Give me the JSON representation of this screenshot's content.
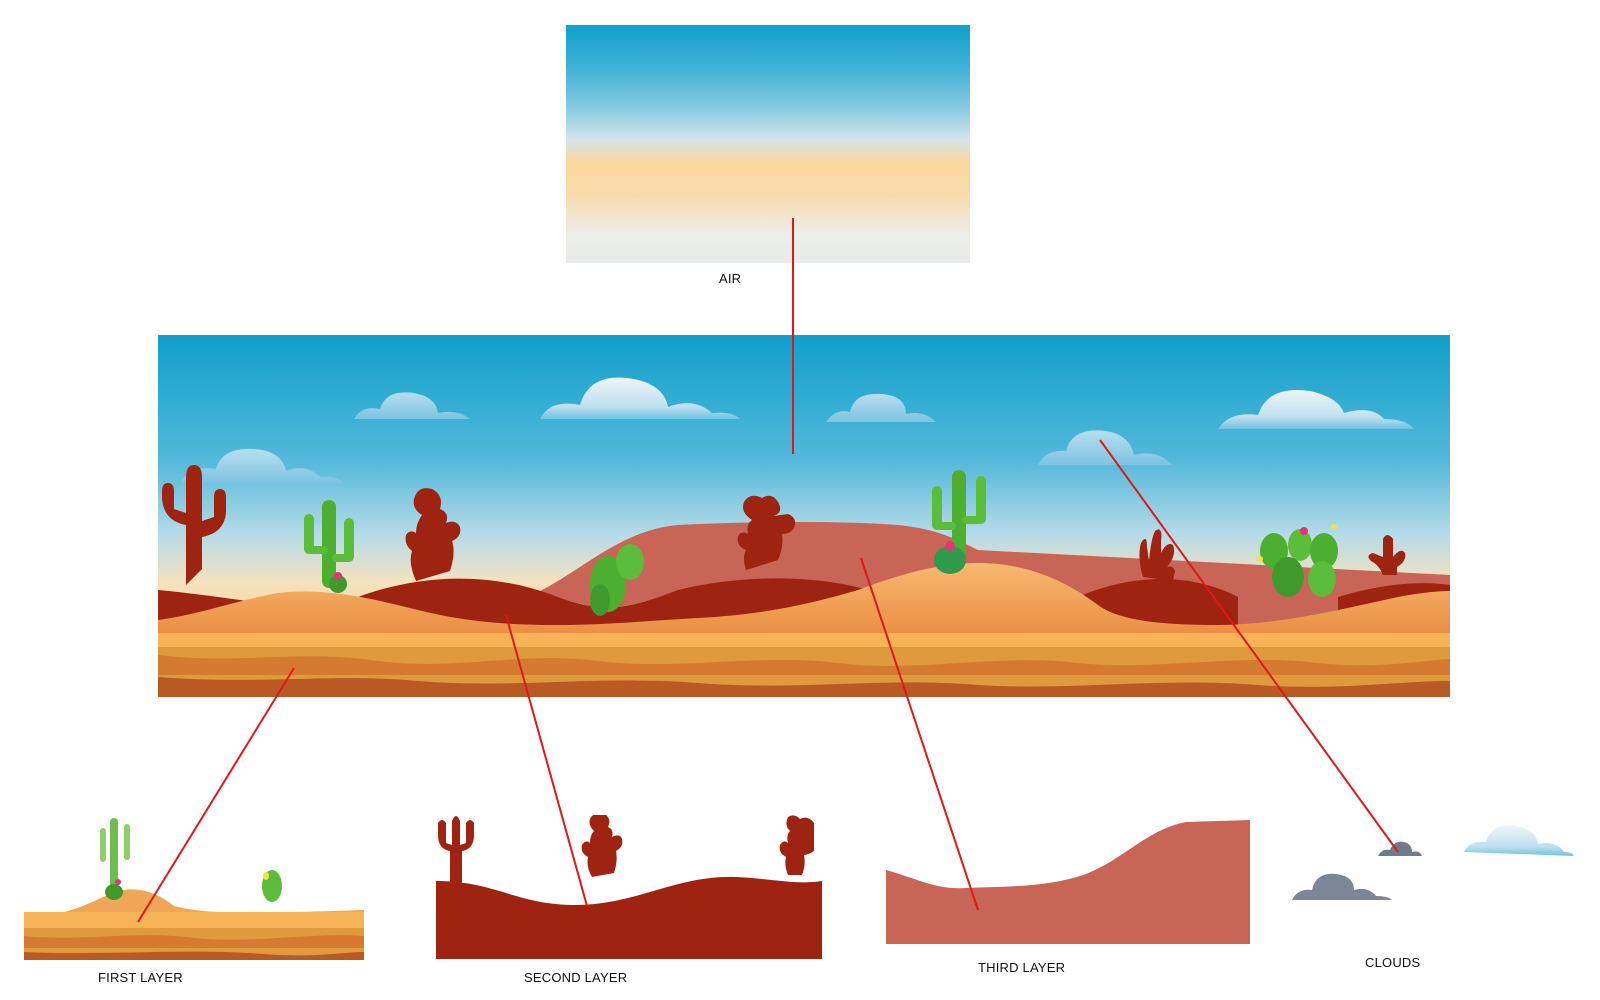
{
  "labels": {
    "air": "AIR",
    "first_layer": "FIRST LAYER",
    "second_layer": "SECOND LAYER",
    "third_layer": "THIRD LAYER",
    "clouds": "CLOUDS"
  },
  "colors": {
    "sky_top": "#0fa0cc",
    "sky_warm": "#fbd79a",
    "sand": "#f4a35a",
    "sand_dark": "#e58a3c",
    "second_layer": "#9e2310",
    "third_layer": "#c96557",
    "cactus_green": "#4caf2f",
    "connector": "#e01818"
  }
}
